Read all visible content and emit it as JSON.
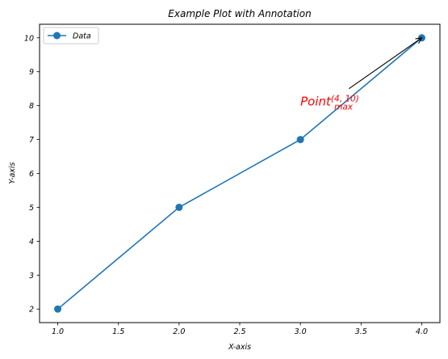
{
  "chart_data": {
    "type": "line",
    "title": "Example Plot with Annotation",
    "xlabel": "X-axis",
    "ylabel": "Y-axis",
    "xlim": [
      0.85,
      4.15
    ],
    "ylim": [
      1.6,
      10.4
    ],
    "xticks": [
      "1.0",
      "1.5",
      "2.0",
      "2.5",
      "3.0",
      "3.5",
      "4.0"
    ],
    "yticks": [
      "2",
      "3",
      "4",
      "5",
      "6",
      "7",
      "8",
      "9",
      "10"
    ],
    "grid": false,
    "legend": {
      "position": "top-left",
      "entries": [
        "Data"
      ]
    },
    "series": [
      {
        "name": "Data",
        "color": "#1f77b4",
        "marker": "circle",
        "x": [
          1,
          2,
          3,
          4
        ],
        "y": [
          2,
          5,
          7,
          10
        ]
      }
    ],
    "annotation": {
      "base": "Point",
      "subscript": "max",
      "superscript": "(4, 10)",
      "color": "#ff0000",
      "text_anchor_xy": [
        3.0,
        8.0
      ],
      "arrow_from_xy": [
        3.4,
        8.5
      ],
      "arrow_to_xy": [
        4.0,
        10.0
      ]
    }
  }
}
